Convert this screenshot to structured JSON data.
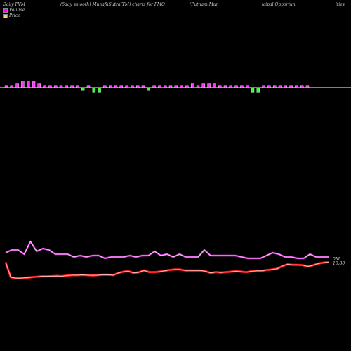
{
  "header": {
    "left": "Daily PVM",
    "middle": "(5day smooth) MunafaSutra(TM) charts for PMO",
    "right": "(Putnam Mun",
    "right2": "icipal Opportun",
    "right3": "ities"
  },
  "legend": {
    "volume_label": "Volume",
    "price_label": "Price",
    "volume_color": "#ff00ff",
    "price_color": "#ffcc66"
  },
  "colors": {
    "background": "#000000",
    "volume_up": "#ff33ff",
    "volume_down": "#33ff33",
    "volume_line": "#dd44dd",
    "price_line": "#ff2222",
    "baseline": "#ffffff"
  },
  "chart_data": {
    "type": "line",
    "title": "",
    "series": [
      {
        "name": "Volume",
        "values": [
          6,
          8,
          8,
          5,
          14,
          7,
          9,
          8,
          5,
          5,
          5,
          3,
          4,
          3,
          4,
          4,
          2,
          3,
          3,
          3,
          4,
          3,
          4,
          4,
          7,
          4,
          5,
          3,
          5,
          3,
          3,
          3,
          8,
          4,
          4,
          4,
          4,
          4,
          3,
          2,
          2,
          2,
          4,
          6,
          5,
          3,
          3,
          2,
          2,
          5,
          3,
          3,
          3
        ]
      },
      {
        "name": "Price",
        "values": [
          10.8,
          10.1,
          10.06,
          10.06,
          10.08,
          10.1,
          10.12,
          10.14,
          10.14,
          10.15,
          10.16,
          10.15,
          10.18,
          10.2,
          10.2,
          10.21,
          10.2,
          10.19,
          10.2,
          10.22,
          10.22,
          10.2,
          10.3,
          10.36,
          10.38,
          10.3,
          10.33,
          10.42,
          10.34,
          10.34,
          10.36,
          10.4,
          10.44,
          10.46,
          10.46,
          10.42,
          10.42,
          10.42,
          10.42,
          10.38,
          10.3,
          10.34,
          10.32,
          10.34,
          10.36,
          10.38,
          10.36,
          10.34,
          10.38,
          10.4,
          10.4,
          10.44,
          10.46,
          10.5,
          10.62,
          10.7,
          10.68,
          10.68,
          10.66,
          10.6,
          10.66,
          10.74,
          10.78,
          10.8
        ]
      }
    ],
    "volume_bars": [
      1,
      1,
      2,
      3,
      3,
      3,
      2,
      1,
      1,
      1,
      1,
      1,
      1,
      1,
      -1,
      1,
      -2,
      -2,
      1,
      1,
      1,
      1,
      1,
      1,
      1,
      1,
      -1,
      1,
      1,
      1,
      1,
      1,
      1,
      1,
      2,
      1,
      2,
      2,
      2,
      1,
      1,
      1,
      1,
      1,
      1,
      -2,
      -2,
      1,
      1,
      1,
      1,
      1,
      1,
      1,
      1,
      1
    ],
    "labels": {
      "volume_end": "0M",
      "price_end": "10.80"
    }
  }
}
